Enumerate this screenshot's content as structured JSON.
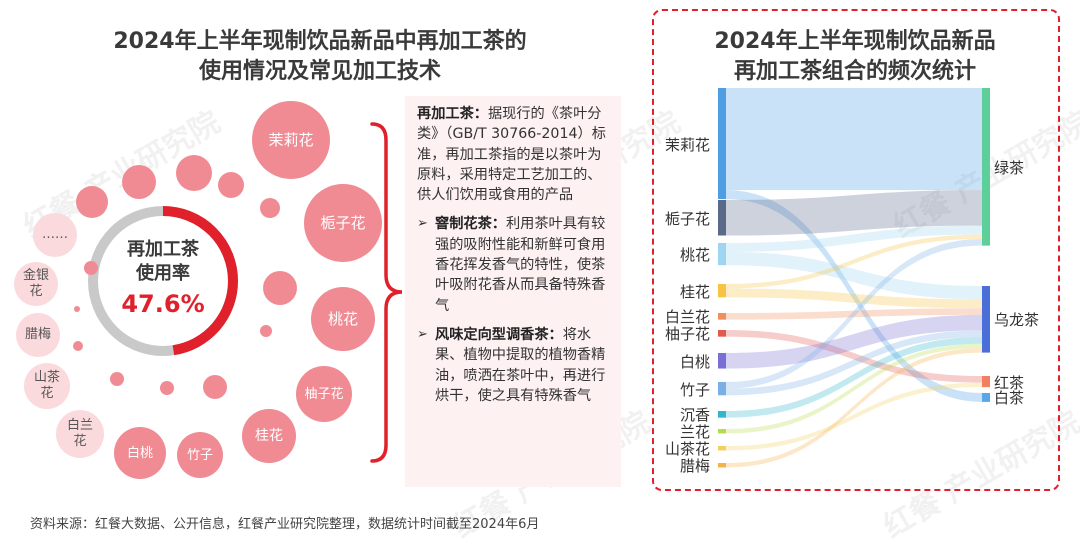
{
  "left_title_line1": "2024年上半年现制饮品新品中再加工茶的",
  "left_title_line2": "使用情况及常见加工技术",
  "right_title_line1": "2024年上半年现制饮品新品",
  "right_title_line2": "再加工茶组合的频次统计",
  "donut": {
    "label_line1": "再加工茶",
    "label_line2": "使用率",
    "value": "47.6%",
    "fraction": 0.476,
    "color_used": "#e0202b",
    "color_rest": "#c9c9c9"
  },
  "bubbles": [
    "茉莉花",
    "栀子花",
    "桃花",
    "柚子花",
    "桂花",
    "竹子",
    "白桃",
    "白兰花",
    "山茶花",
    "腊梅",
    "金银花",
    "……"
  ],
  "definition": {
    "term": "再加工茶：",
    "text": "据现行的《茶叶分类》（GB/T 30766-2014）标准，再加工茶指的是以茶叶为原料，采用特定工艺加工的、供人们饮用或食用的产品",
    "b1_term": "窨制花茶：",
    "b1_text": "利用茶叶具有较强的吸附性能和新鲜可食用香花挥发香气的特性，使茶叶吸附花香从而具备特殊香气",
    "b2_term": "风味定向型调香茶：",
    "b2_text": "将水果、植物中提取的植物香精油，喷洒在茶叶中，再进行烘干，使之具有特殊香气"
  },
  "footer": "资料来源：红餐大数据、公开信息，红餐产业研究院整理，数据统计时间截至2024年6月",
  "watermark": "红餐 产业研究院",
  "chart_data": {
    "type": "sankey",
    "title": "2024年上半年现制饮品新品再加工茶组合的频次统计",
    "sources": [
      {
        "name": "茉莉花",
        "color": "#4f9ee3"
      },
      {
        "name": "栀子花",
        "color": "#5c6a8a"
      },
      {
        "name": "桃花",
        "color": "#9fd4f2"
      },
      {
        "name": "桂花",
        "color": "#f6c343"
      },
      {
        "name": "白兰花",
        "color": "#f28e5c"
      },
      {
        "name": "柚子花",
        "color": "#e05a4f"
      },
      {
        "name": "白桃",
        "color": "#7a6fd4"
      },
      {
        "name": "竹子",
        "color": "#7ab0e6"
      },
      {
        "name": "沉香",
        "color": "#33b6c9"
      },
      {
        "name": "兰花",
        "color": "#b7dc4a"
      },
      {
        "name": "山茶花",
        "color": "#f2d05e"
      },
      {
        "name": "腊梅",
        "color": "#f5b24a"
      }
    ],
    "targets": [
      {
        "name": "绿茶",
        "color": "#5ccf9a"
      },
      {
        "name": "乌龙茶",
        "color": "#4b6fd8"
      },
      {
        "name": "红茶",
        "color": "#f08060"
      },
      {
        "name": "白茶",
        "color": "#58a8e8"
      }
    ],
    "links": [
      {
        "source": "茉莉花",
        "target": "绿茶",
        "value": 46
      },
      {
        "source": "茉莉花",
        "target": "白茶",
        "value": 4
      },
      {
        "source": "栀子花",
        "target": "绿茶",
        "value": 16
      },
      {
        "source": "桃花",
        "target": "绿茶",
        "value": 4
      },
      {
        "source": "桃花",
        "target": "乌龙茶",
        "value": 6
      },
      {
        "source": "桂花",
        "target": "绿茶",
        "value": 2
      },
      {
        "source": "桂花",
        "target": "乌龙茶",
        "value": 4
      },
      {
        "source": "白兰花",
        "target": "乌龙茶",
        "value": 3
      },
      {
        "source": "柚子花",
        "target": "红茶",
        "value": 3
      },
      {
        "source": "白桃",
        "target": "乌龙茶",
        "value": 7
      },
      {
        "source": "竹子",
        "target": "绿茶",
        "value": 3
      },
      {
        "source": "竹子",
        "target": "乌龙茶",
        "value": 3
      },
      {
        "source": "沉香",
        "target": "乌龙茶",
        "value": 3
      },
      {
        "source": "兰花",
        "target": "乌龙茶",
        "value": 2
      },
      {
        "source": "山茶花",
        "target": "红茶",
        "value": 2
      },
      {
        "source": "腊梅",
        "target": "乌龙茶",
        "value": 2
      }
    ]
  }
}
